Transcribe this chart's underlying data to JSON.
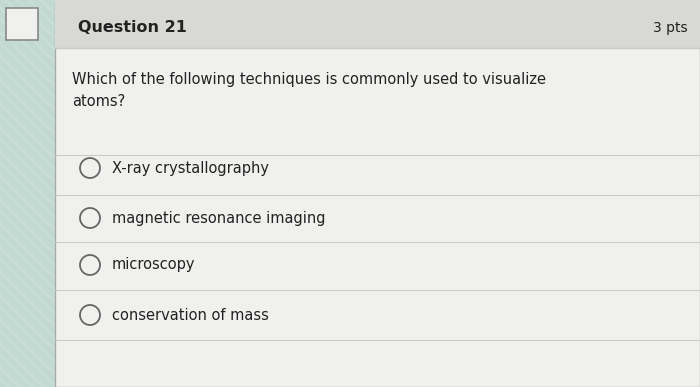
{
  "title": "Question 21",
  "pts": "3 pts",
  "question": "Which of the following techniques is commonly used to visualize\natoms?",
  "options": [
    "X-ray crystallography",
    "magnetic resonance imaging",
    "microscopy",
    "conservation of mass"
  ],
  "bg_color": "#c8ddd8",
  "main_bg": "#f0f0ee",
  "header_bg": "#d8d8d4",
  "border_color": "#aaaaaa",
  "text_color": "#222222",
  "title_fontsize": 11.5,
  "pts_fontsize": 10,
  "question_fontsize": 10.5,
  "option_fontsize": 10.5,
  "circle_color": "#666666",
  "line_color": "#c8c8c4",
  "stripe_color1": "#c0d8d0",
  "stripe_color2": "#d8ece8"
}
